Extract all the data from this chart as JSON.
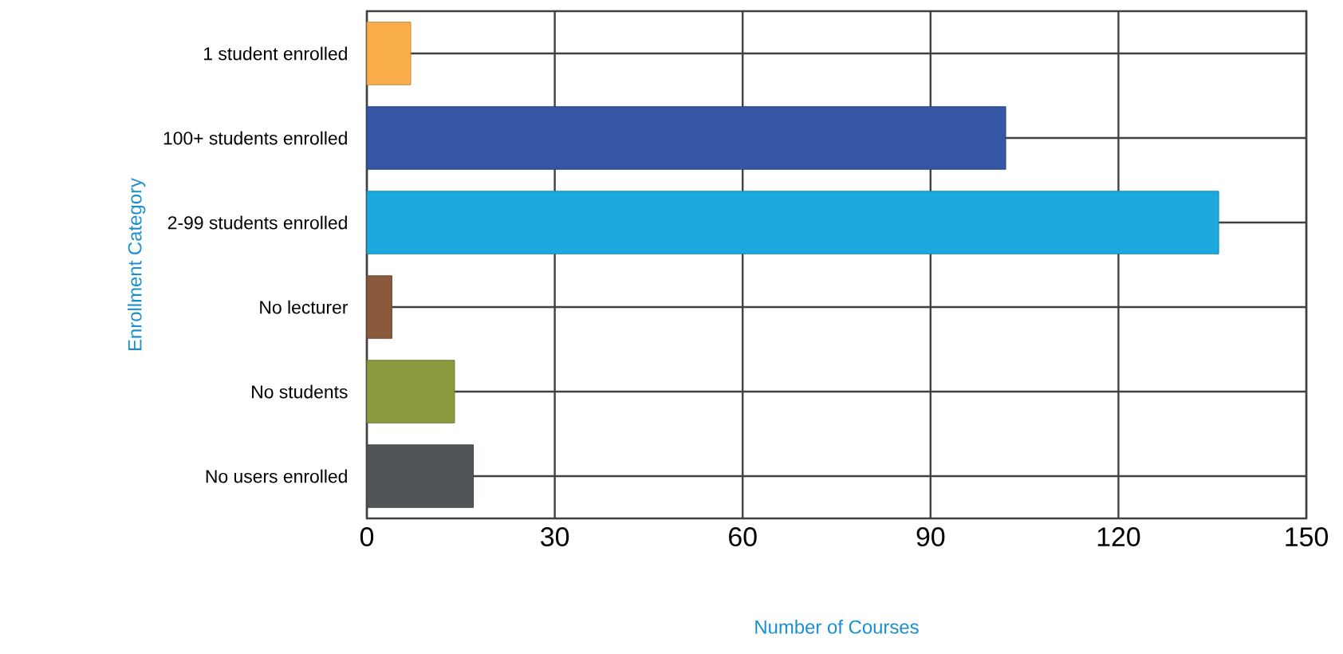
{
  "chart_data": {
    "type": "bar",
    "orientation": "horizontal",
    "xlabel": "Number of Courses",
    "ylabel": "Enrollment Category",
    "categories": [
      "1 student enrolled",
      "100+ students enrolled",
      "2-99 students enrolled",
      "No lecturer",
      "No students",
      "No users enrolled"
    ],
    "values": [
      7,
      102,
      136,
      4,
      14,
      17
    ],
    "colors": [
      "#f9ad4b",
      "#3555a5",
      "#1caade",
      "#8a5a3c",
      "#8b9a3f",
      "#505558"
    ],
    "xlim": [
      0,
      150
    ],
    "xticks": [
      0,
      30,
      60,
      90,
      120,
      150
    ],
    "grid": true
  }
}
